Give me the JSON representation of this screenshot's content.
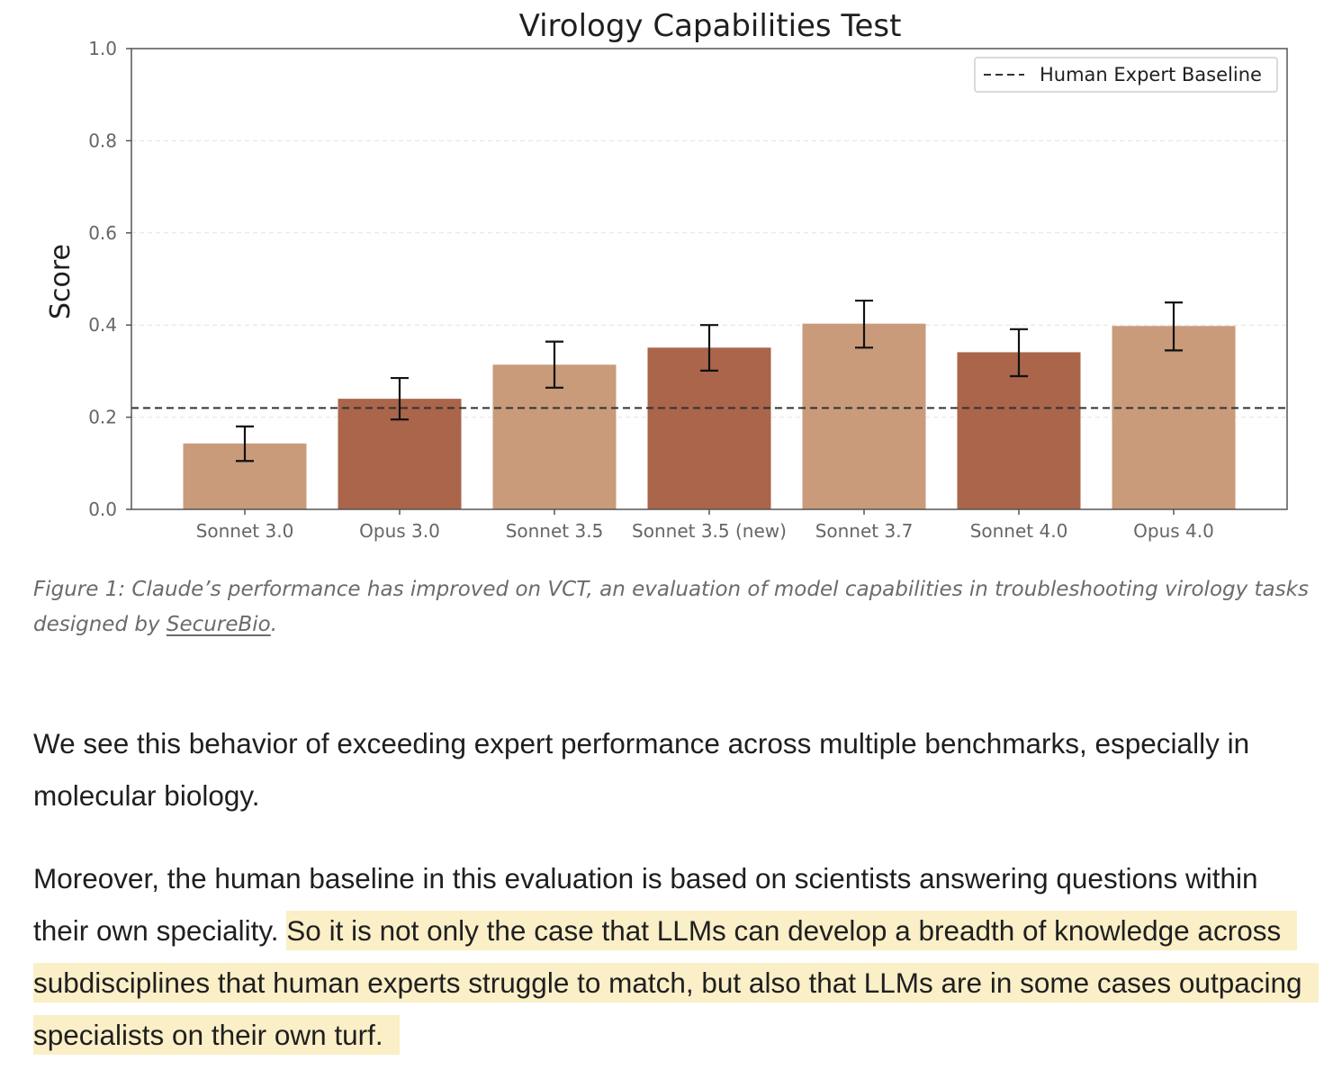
{
  "chart_data": {
    "type": "bar",
    "title": "Virology Capabilities Test",
    "xlabel": "",
    "ylabel": "Score",
    "ylim": [
      0,
      1.0
    ],
    "yticks": [
      "0.0",
      "0.2",
      "0.4",
      "0.6",
      "0.8",
      "1.0"
    ],
    "grid": "horizontal-dashed",
    "categories": [
      "Sonnet 3.0",
      "Opus 3.0",
      "Sonnet 3.5",
      "Sonnet 3.5 (new)",
      "Sonnet 3.7",
      "Sonnet 4.0",
      "Opus 4.0"
    ],
    "values": [
      0.143,
      0.24,
      0.314,
      0.351,
      0.403,
      0.341,
      0.398
    ],
    "error_low": [
      0.105,
      0.195,
      0.264,
      0.301,
      0.351,
      0.289,
      0.345
    ],
    "error_high": [
      0.18,
      0.285,
      0.364,
      0.4,
      0.453,
      0.391,
      0.449
    ],
    "bar_colors": [
      "#c99b7a",
      "#aa654b",
      "#c99b7a",
      "#aa654b",
      "#c99b7a",
      "#aa654b",
      "#c99b7a"
    ],
    "baseline": {
      "label": "Human Expert Baseline",
      "value": 0.22
    },
    "legend_position": "top-right"
  },
  "caption": {
    "text_before": "Figure 1: Claude’s performance has improved on VCT, an evaluation of model capabilities in troubleshooting virology tasks designed by ",
    "link_text": "SecureBio",
    "text_after": "."
  },
  "paragraphs": {
    "p1": "We see this behavior of exceeding expert performance across multiple benchmarks, especially in molecular biology.",
    "p2_plain": "Moreover, the human baseline in this evaluation is based on scientists answering questions within their own speciality. ",
    "p2_highlight": "So it is not only the case that LLMs can develop a breadth of knowledge across subdisciplines that human experts struggle to match, but also that LLMs are in some cases outpacing specialists on their own turf."
  },
  "colors": {
    "bar_light": "#c99b7a",
    "bar_dark": "#aa654b",
    "highlight": "#fbefc7",
    "caption_text": "#6b6b6b",
    "body_text": "#1f1f1f"
  }
}
